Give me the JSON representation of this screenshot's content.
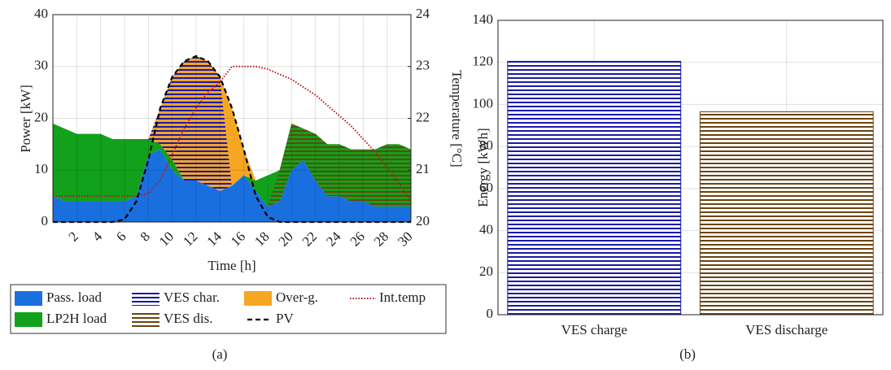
{
  "chart_data": [
    {
      "type": "area",
      "xlabel": "Time [h]",
      "ylabel": "Power [kW]",
      "y2label": "Temperature [°C]",
      "caption": "(a)",
      "x": [
        0,
        1,
        2,
        3,
        4,
        5,
        6,
        7,
        8,
        9,
        10,
        11,
        12,
        13,
        14,
        15,
        16,
        17,
        18,
        19,
        20,
        21,
        22,
        23,
        24,
        25,
        26,
        27,
        28,
        29,
        30
      ],
      "xlim": [
        0,
        30
      ],
      "xticks": [
        2,
        4,
        6,
        8,
        10,
        12,
        14,
        16,
        18,
        20,
        22,
        24,
        26,
        28,
        30
      ],
      "ylim": [
        0,
        40
      ],
      "yticks": [
        0,
        10,
        20,
        30,
        40
      ],
      "y2lim": [
        20,
        24
      ],
      "y2ticks": [
        20,
        21,
        22,
        23,
        24
      ],
      "grid": true,
      "series": [
        {
          "name": "Pass. load",
          "color": "#1a6fdf",
          "values": [
            5,
            4,
            4,
            4,
            4,
            4,
            4,
            5,
            13,
            14,
            10,
            8,
            8,
            7,
            6,
            7,
            9,
            6,
            3,
            4,
            10,
            12,
            8,
            5,
            5,
            4,
            4,
            3,
            3,
            3,
            3
          ]
        },
        {
          "name": "VES char.",
          "color": "#1a1aa8",
          "values": [
            0,
            0,
            0,
            0,
            0,
            0,
            0,
            0,
            0,
            7,
            16,
            23,
            24,
            24,
            22,
            0,
            0,
            0,
            0,
            0,
            0,
            0,
            0,
            0,
            0,
            0,
            0,
            0,
            0,
            0,
            0
          ]
        },
        {
          "name": "Over-g.",
          "color": "#f5a623",
          "values": [
            0,
            0,
            0,
            0,
            0,
            0,
            0,
            0,
            0,
            0,
            0,
            0,
            0,
            0,
            0,
            15,
            5,
            0,
            0,
            0,
            0,
            0,
            0,
            0,
            0,
            0,
            0,
            0,
            0,
            0,
            0
          ]
        },
        {
          "name": "Int.temp",
          "color": "#c0141b",
          "axis": "y2",
          "values": [
            20.5,
            20.5,
            20.5,
            20.5,
            20.5,
            20.5,
            20.5,
            20.5,
            20.55,
            20.8,
            21.3,
            21.8,
            22.2,
            22.5,
            22.7,
            23,
            23,
            23,
            22.95,
            22.85,
            22.75,
            22.6,
            22.45,
            22.25,
            22.05,
            21.85,
            21.6,
            21.35,
            21.05,
            20.75,
            20.4
          ]
        },
        {
          "name": "LP2H load",
          "color": "#11a11a",
          "values": [
            14,
            14,
            13,
            13,
            13,
            12,
            12,
            11,
            3,
            1,
            2,
            0,
            0,
            0,
            0,
            0,
            0,
            2,
            6,
            6,
            9,
            6,
            9,
            10,
            10,
            10,
            10,
            11,
            12,
            12,
            11
          ]
        },
        {
          "name": "VES dis.",
          "color": "#6b4410",
          "values": [
            0,
            0,
            0,
            0,
            0,
            0,
            0,
            0,
            0,
            0,
            0,
            0,
            0,
            0,
            0,
            0,
            0,
            0,
            0,
            6,
            9,
            6,
            9,
            10,
            10,
            10,
            10,
            11,
            12,
            12,
            11
          ]
        },
        {
          "name": "PV",
          "color": "#000000",
          "values": [
            0,
            0,
            0,
            0,
            0,
            0,
            0.5,
            4,
            12,
            22,
            28,
            31,
            32,
            31,
            28,
            22,
            14,
            5,
            1,
            0,
            0,
            0,
            0,
            0,
            0,
            0,
            0,
            0,
            0,
            0,
            0
          ]
        }
      ]
    },
    {
      "type": "bar",
      "ylabel": "Energy [kWh]",
      "caption": "(b)",
      "categories": [
        "VES charge",
        "VES discharge"
      ],
      "values": [
        120.5,
        96.5
      ],
      "colors": [
        "#1a1aa8",
        "#6b4410"
      ],
      "ylim": [
        0,
        140
      ],
      "yticks": [
        0,
        20,
        40,
        60,
        80,
        100,
        120,
        140
      ],
      "grid": true
    }
  ]
}
